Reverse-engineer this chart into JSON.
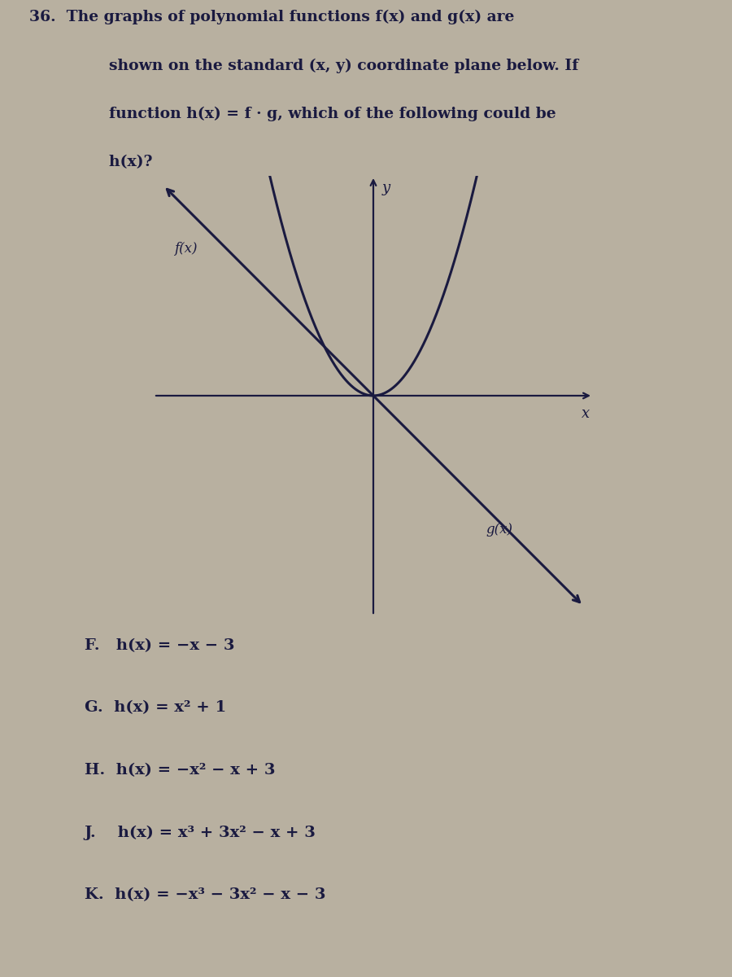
{
  "background_color": "#b8b0a0",
  "curve_color": "#1a1a40",
  "axis_color": "#1a1a40",
  "text_color": "#1a1a40",
  "graph_xlim": [
    -4.5,
    4.5
  ],
  "graph_ylim": [
    -4.5,
    4.5
  ],
  "f_label": "f(x)",
  "g_label": "g(x)",
  "question_line1": "36.  The graphs of polynomial functions f(x) and g(x) are",
  "question_line2": "      shown on the standard (x, y) coordinate plane below. If",
  "question_line3": "      function h(x) = f · g, which of the following could be",
  "question_line4": "      h(x)?",
  "ans_F": "F.   h(x) = −x − 3",
  "ans_G": "G.  h(x) = x² + 1",
  "ans_H": "H.  h(x) = −x² − x + 3",
  "ans_J": "J.    h(x) = x³ + 3x² − x + 3",
  "ans_K": "K.  h(x) = −x³ − 3x² − x − 3"
}
